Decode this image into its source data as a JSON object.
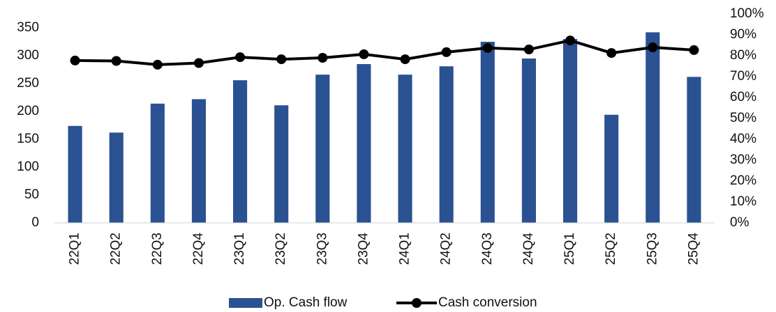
{
  "chart_data": {
    "type": "bar_line",
    "categories": [
      "22Q1",
      "22Q2",
      "22Q3",
      "22Q4",
      "23Q1",
      "23Q2",
      "23Q3",
      "23Q4",
      "24Q1",
      "24Q2",
      "24Q3",
      "24Q4",
      "25Q1",
      "25Q2",
      "25Q3",
      "25Q4"
    ],
    "series": [
      {
        "name": "Op. Cash flow",
        "color": "#2a5192",
        "type": "bar",
        "axis": "y",
        "values": [
          174,
          162,
          214,
          222,
          256,
          211,
          266,
          285,
          266,
          281,
          325,
          295,
          330,
          194,
          342,
          262
        ]
      },
      {
        "name": "Cash conversion",
        "color": "#000000",
        "type": "line",
        "axis": "y2",
        "values": [
          77.7,
          77.5,
          75.7,
          76.5,
          79.3,
          78.3,
          79,
          80.7,
          78.3,
          81.7,
          83.7,
          83,
          87.3,
          81.3,
          84,
          82.7
        ]
      }
    ],
    "ylim": [
      0,
      375
    ],
    "yticks": [
      0,
      50,
      100,
      150,
      200,
      250,
      300,
      350
    ],
    "y2lim": [
      0,
      100
    ],
    "y2ticks": [
      {
        "value": 0,
        "label": "0%"
      },
      {
        "value": 10,
        "label": "10%"
      },
      {
        "value": 20,
        "label": "20%"
      },
      {
        "value": 30,
        "label": "30%"
      },
      {
        "value": 40,
        "label": "40%"
      },
      {
        "value": 50,
        "label": "50%"
      },
      {
        "value": 60,
        "label": "60%"
      },
      {
        "value": 70,
        "label": "70%"
      },
      {
        "value": 80,
        "label": "80%"
      },
      {
        "value": 90,
        "label": "90%"
      },
      {
        "value": 100,
        "label": "100%"
      }
    ],
    "grid": false,
    "legend": "bottom"
  }
}
